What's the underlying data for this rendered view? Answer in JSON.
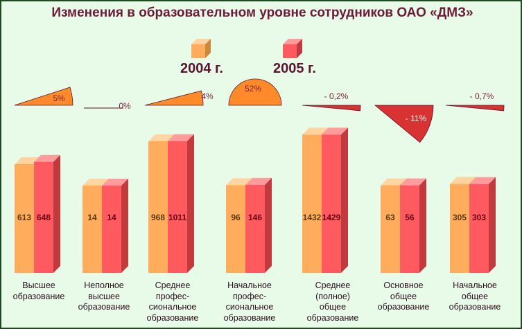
{
  "title": "Изменения в образовательном уровне сотрудников ОАО «ДМЗ»",
  "legend": [
    {
      "label": "2004 г.",
      "color": "#ffad5c"
    },
    {
      "label": "2005 г.",
      "color": "#ff5a5f"
    }
  ],
  "chart_data": {
    "type": "bar",
    "title": "Изменения в образовательном уровне сотрудников ОАО «ДМЗ»",
    "categories": [
      "Высшее образование",
      "Неполное высшее образование",
      "Среднее профес-сиональное образование",
      "Начальное профес-сиональное образование",
      "Среднее (полное) общее образование",
      "Основное общее образование",
      "Начальное общее образование"
    ],
    "series": [
      {
        "name": "2004 г.",
        "values": [
          613,
          14,
          968,
          96,
          1432,
          63,
          305
        ]
      },
      {
        "name": "2005 г.",
        "values": [
          648,
          14,
          1011,
          146,
          1429,
          56,
          303
        ]
      }
    ],
    "changes": [
      "5%",
      "0%",
      "4%",
      "52%",
      "- 0,2%",
      "- 11%",
      "- 0,7%"
    ],
    "change_values": [
      5,
      0,
      4,
      52,
      -0.2,
      -11,
      -0.7
    ]
  },
  "category_lines": [
    [
      "Высшее",
      "образование"
    ],
    [
      "Неполное",
      "высшее",
      "образование"
    ],
    [
      "Среднее",
      "профес-",
      "сиональное",
      "образование"
    ],
    [
      "Начальное",
      "профес-",
      "сиональное",
      "образование"
    ],
    [
      "Среднее",
      "(полное)",
      "общее",
      "образование"
    ],
    [
      "Основное",
      "общее",
      "образование"
    ],
    [
      "Начальное",
      "общее",
      "образование"
    ]
  ],
  "colors": {
    "orange_front": "#ffad5c",
    "orange_top": "#ffd4a0",
    "orange_side": "#c98a3f",
    "red_front": "#ff5a5f",
    "red_top": "#ff9a9d",
    "red_side": "#c03a3e",
    "positive_wedge": "#ff8a2a",
    "negative_wedge": "#d83232",
    "value_orange": "#5a3a10",
    "value_red": "#6a0010",
    "change_text": "#7a2040"
  }
}
